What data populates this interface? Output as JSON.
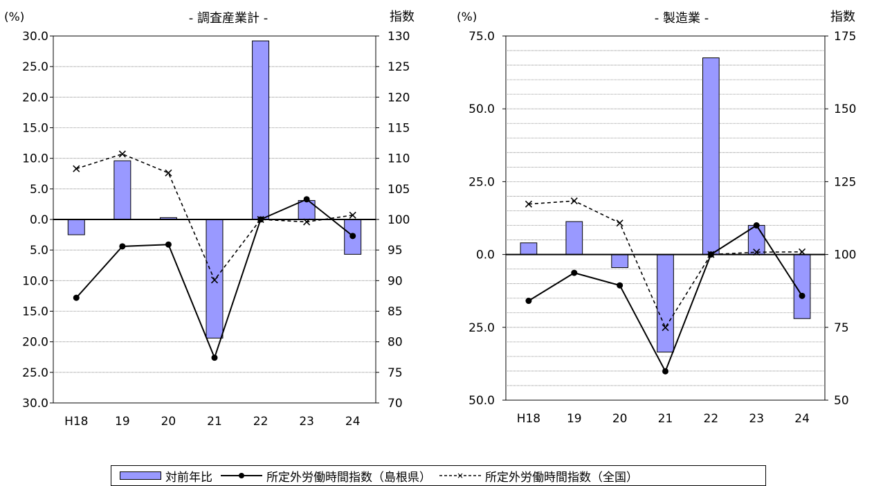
{
  "chart_data": [
    {
      "type": "bar+line",
      "title": "- 調査産業計 -",
      "left_axis_unit": "(%)",
      "right_axis_unit": "指数",
      "categories": [
        "H18",
        "19",
        "20",
        "21",
        "22",
        "23",
        "24"
      ],
      "left_ylim": [
        -30,
        30
      ],
      "left_ticks": [
        30,
        25,
        20,
        15,
        10,
        5,
        0,
        -5,
        -10,
        -15,
        -20,
        -25,
        -30
      ],
      "left_tick_labels": [
        "30.0",
        "25.0",
        "20.0",
        "15.0",
        "10.0",
        "5.0",
        "0.0",
        "5.0",
        "10.0",
        "15.0",
        "20.0",
        "25.0",
        "30.0"
      ],
      "right_ylim": [
        70,
        130
      ],
      "right_ticks": [
        130,
        125,
        120,
        115,
        110,
        105,
        100,
        95,
        90,
        85,
        80,
        75,
        70
      ],
      "series": [
        {
          "name": "対前年比",
          "kind": "bar",
          "axis": "left",
          "values": [
            -2.5,
            9.6,
            0.3,
            -19.4,
            29.2,
            3.1,
            -5.7
          ]
        },
        {
          "name": "所定外労働時間指数（島根県）",
          "kind": "line-solid",
          "axis": "right",
          "values": [
            87.2,
            95.6,
            95.9,
            77.4,
            100.0,
            103.3,
            97.3
          ]
        },
        {
          "name": "所定外労働時間指数（全国）",
          "kind": "line-dashed",
          "axis": "right",
          "values": [
            108.3,
            110.7,
            107.6,
            90.1,
            100.0,
            99.6,
            100.7
          ]
        }
      ],
      "grid": true
    },
    {
      "type": "bar+line",
      "title": "- 製造業 -",
      "left_axis_unit": "(%)",
      "right_axis_unit": "指数",
      "categories": [
        "H18",
        "19",
        "20",
        "21",
        "22",
        "23",
        "24"
      ],
      "left_ylim": [
        -50,
        75
      ],
      "left_ticks": [
        75,
        50,
        25,
        0,
        -25,
        -50
      ],
      "left_tick_labels": [
        "75.0",
        "50.0",
        "25.0",
        "0.0",
        "25.0",
        "50.0"
      ],
      "right_ylim": [
        50,
        175
      ],
      "right_ticks": [
        175,
        150,
        125,
        100,
        75,
        50
      ],
      "series": [
        {
          "name": "対前年比",
          "kind": "bar",
          "axis": "left",
          "values": [
            4.0,
            11.3,
            -4.5,
            -33.5,
            67.5,
            10.0,
            -22.0
          ]
        },
        {
          "name": "所定外労働時間指数（島根県）",
          "kind": "line-solid",
          "axis": "right",
          "values": [
            84.1,
            93.7,
            89.4,
            59.9,
            100.0,
            110.0,
            85.8
          ]
        },
        {
          "name": "所定外労働時間指数（全国）",
          "kind": "line-dashed",
          "axis": "right",
          "values": [
            117.3,
            118.4,
            110.8,
            74.9,
            100.0,
            100.8,
            100.9
          ]
        }
      ],
      "grid": true
    }
  ],
  "legend": {
    "bar_label": "対前年比",
    "line_label": "所定外労働時間指数（島根県）",
    "dash_label": "所定外労働時間指数（全国）"
  },
  "colors": {
    "bar_fill": "#9999ff",
    "bar_stroke": "#000000",
    "line": "#000000"
  }
}
